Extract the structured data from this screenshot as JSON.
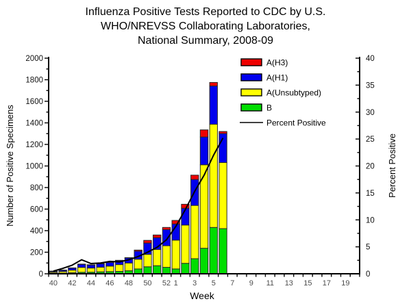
{
  "title_lines": [
    "Influenza Positive Tests Reported to CDC by U.S.",
    "WHO/NREVSS Collaborating Laboratories,",
    "National Summary, 2008-09"
  ],
  "chart_data": {
    "type": "bar",
    "stacked": true,
    "subtype": "stacked-bar-with-line-overlay",
    "xlabel": "Week",
    "ylabel_left": "Number of Positive Specimens",
    "ylabel_right": "Percent Positive",
    "ylim_left": [
      0,
      2000
    ],
    "ytick_left_major": 200,
    "ytick_left_minor": 100,
    "ylim_right": [
      0,
      40
    ],
    "ytick_right_major": 5,
    "ytick_right_minor": 2.5,
    "grid": "off",
    "legend_position": "top-right-inside",
    "week_slots": [
      "40",
      "41",
      "42",
      "43",
      "44",
      "45",
      "46",
      "47",
      "48",
      "49",
      "50",
      "51",
      "52",
      "1",
      "2",
      "3",
      "4",
      "5",
      "6",
      "7",
      "8",
      "9",
      "10",
      "11",
      "12",
      "13",
      "14",
      "15",
      "16",
      "17",
      "18",
      "19",
      "20"
    ],
    "x_ticks": [
      {
        "i": 0,
        "label": "40"
      },
      {
        "i": 2,
        "label": "42"
      },
      {
        "i": 4,
        "label": "44"
      },
      {
        "i": 6,
        "label": "46"
      },
      {
        "i": 8,
        "label": "48"
      },
      {
        "i": 10,
        "label": "50"
      },
      {
        "i": 12,
        "label": "52"
      },
      {
        "i": 13,
        "label": "1"
      },
      {
        "i": 15,
        "label": "3"
      },
      {
        "i": 17,
        "label": "5"
      },
      {
        "i": 19,
        "label": "7"
      },
      {
        "i": 21,
        "label": "9"
      },
      {
        "i": 23,
        "label": "11"
      },
      {
        "i": 25,
        "label": "13"
      },
      {
        "i": 27,
        "label": "15"
      },
      {
        "i": 29,
        "label": "17"
      },
      {
        "i": 31,
        "label": "19"
      }
    ],
    "bar_weeks": [
      "40",
      "41",
      "42",
      "43",
      "44",
      "45",
      "46",
      "47",
      "48",
      "49",
      "50",
      "51",
      "52",
      "1",
      "2",
      "3",
      "4",
      "5",
      "6"
    ],
    "series": [
      {
        "name": "A(H3)",
        "color": "#ee0000",
        "values": [
          2,
          2,
          1,
          2,
          2,
          2,
          2,
          2,
          4,
          10,
          25,
          25,
          20,
          33,
          37,
          40,
          66,
          33,
          19
        ]
      },
      {
        "name": "A(H1)",
        "color": "#0000ee",
        "values": [
          8,
          12,
          20,
          29,
          29,
          33,
          35,
          38,
          46,
          75,
          105,
          110,
          150,
          150,
          156,
          241,
          258,
          355,
          269
        ]
      },
      {
        "name": "A(Unsubtyped)",
        "color": "#ffff00",
        "values": [
          10,
          15,
          24,
          45,
          38,
          43,
          51,
          63,
          72,
          90,
          115,
          150,
          200,
          267,
          355,
          494,
          774,
          957,
          613
        ]
      },
      {
        "name": "B",
        "color": "#00dd00",
        "values": [
          5,
          6,
          10,
          14,
          15,
          18,
          20,
          22,
          28,
          45,
          65,
          75,
          60,
          45,
          97,
          140,
          237,
          430,
          419
        ]
      }
    ],
    "line_series": {
      "name": "Percent Positive",
      "color": "#000000",
      "axis": "right",
      "values": [
        0.5,
        1.0,
        1.6,
        2.6,
        1.9,
        2.0,
        2.3,
        2.2,
        2.6,
        3.2,
        4.0,
        4.9,
        6.3,
        8.8,
        11.9,
        15.3,
        18.3,
        22.0,
        25.2
      ]
    },
    "y_tick_labels_left": [
      "0",
      "200",
      "400",
      "600",
      "800",
      "1000",
      "1200",
      "1400",
      "1600",
      "1800",
      "2000"
    ],
    "y_tick_labels_right": [
      "0",
      "5",
      "10",
      "15",
      "20",
      "25",
      "30",
      "35",
      "40"
    ]
  }
}
